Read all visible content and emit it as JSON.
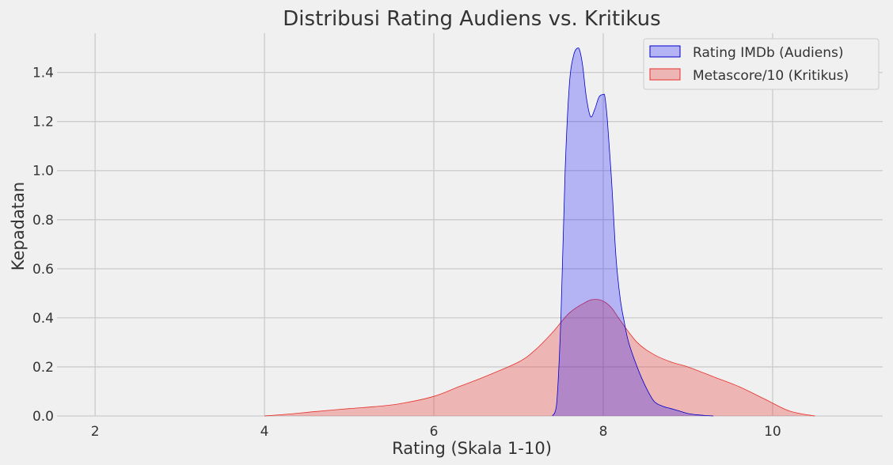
{
  "chart_data": {
    "type": "area",
    "title": "Distribusi Rating Audiens vs. Kritikus",
    "xlabel": "Rating (Skala 1-10)",
    "ylabel": "Kepadatan",
    "xlim": [
      1.55,
      11.3
    ],
    "ylim": [
      0,
      1.56
    ],
    "x_ticks": [
      "2",
      "4",
      "6",
      "8",
      "10"
    ],
    "y_ticks": [
      "0.0",
      "0.2",
      "0.4",
      "0.6",
      "0.8",
      "1.0",
      "1.2",
      "1.4"
    ],
    "grid": true,
    "legend_position": "top-right",
    "series": [
      {
        "name": "Rating IMDb (Audiens)",
        "fill": "#0000ff",
        "fill_opacity": 0.25,
        "stroke": "#0000cc",
        "x": [
          7.4,
          7.45,
          7.5,
          7.55,
          7.6,
          7.65,
          7.7,
          7.73,
          7.76,
          7.8,
          7.85,
          7.9,
          7.95,
          8.0,
          8.02,
          8.05,
          8.1,
          8.15,
          8.2,
          8.25,
          8.3,
          8.4,
          8.5,
          8.6,
          8.7,
          8.8,
          8.9,
          9.0,
          9.1,
          9.2,
          9.3
        ],
        "y": [
          0.0,
          0.05,
          0.4,
          1.0,
          1.35,
          1.47,
          1.5,
          1.48,
          1.42,
          1.3,
          1.22,
          1.25,
          1.3,
          1.31,
          1.3,
          1.2,
          0.95,
          0.65,
          0.48,
          0.38,
          0.3,
          0.2,
          0.12,
          0.06,
          0.04,
          0.03,
          0.02,
          0.01,
          0.005,
          0.002,
          0.0
        ]
      },
      {
        "name": "Metascore/10 (Kritikus)",
        "fill": "#e8302a",
        "fill_opacity": 0.3,
        "stroke": "#e8302a",
        "x": [
          4.0,
          4.3,
          4.6,
          5.0,
          5.3,
          5.6,
          6.0,
          6.3,
          6.6,
          7.0,
          7.2,
          7.4,
          7.6,
          7.8,
          7.9,
          8.0,
          8.1,
          8.2,
          8.4,
          8.6,
          8.8,
          9.0,
          9.3,
          9.6,
          9.9,
          10.2,
          10.5
        ],
        "y": [
          0.0,
          0.008,
          0.018,
          0.03,
          0.038,
          0.05,
          0.08,
          0.12,
          0.16,
          0.22,
          0.27,
          0.34,
          0.42,
          0.465,
          0.475,
          0.468,
          0.44,
          0.39,
          0.3,
          0.25,
          0.22,
          0.2,
          0.16,
          0.12,
          0.07,
          0.02,
          0.0
        ]
      }
    ]
  }
}
